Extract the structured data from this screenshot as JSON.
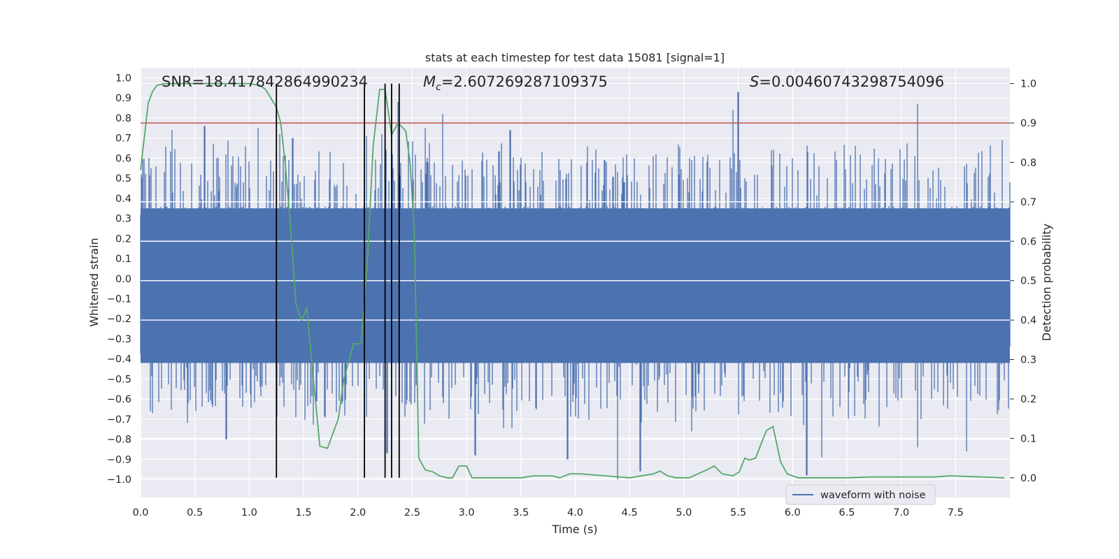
{
  "chart_data": {
    "type": "line",
    "title": "stats at each timestep for test data 15081 [signal=1]",
    "xlabel": "Time (s)",
    "ylabel_left": "Whitened strain",
    "ylabel_right": "Detection probability",
    "xlim": [
      0.0,
      8.0
    ],
    "ylim_left": [
      -1.09,
      1.05
    ],
    "ylim_right": [
      -0.05,
      1.04
    ],
    "x_ticks": [
      "0.0",
      "0.5",
      "1.0",
      "1.5",
      "2.0",
      "2.5",
      "3.0",
      "3.5",
      "4.0",
      "4.5",
      "5.0",
      "5.5",
      "6.0",
      "6.5",
      "7.0",
      "7.5"
    ],
    "y_ticks_left": [
      "1.0",
      "0.9",
      "0.8",
      "0.7",
      "0.6",
      "0.5",
      "0.4",
      "0.3",
      "0.2",
      "0.1",
      "0.0",
      "−0.1",
      "−0.2",
      "−0.3",
      "−0.4",
      "−0.5",
      "−0.6",
      "−0.7",
      "−0.8",
      "−0.9",
      "−1.0"
    ],
    "y_ticks_right": [
      "1.0",
      "0.9",
      "0.8",
      "0.7",
      "0.6",
      "0.5",
      "0.4",
      "0.3",
      "0.2",
      "0.1",
      "0.0"
    ],
    "grid": true,
    "annotations": {
      "snr": "SNR=18.417842864990234",
      "mc_symbol": "M",
      "mc_sub": "c",
      "mc_value": "=2.607269287109375",
      "s_symbol": "S",
      "s_value": "=0.004607432987540​96"
    },
    "threshold": {
      "value": 0.9,
      "color": "#c44e52"
    },
    "vertical_lines": [
      1.25,
      2.06,
      2.25,
      2.31,
      2.38
    ],
    "legend": {
      "label": "waveform with noise",
      "location": "lower-right"
    },
    "series": [
      {
        "name": "waveform with noise",
        "axis": "left",
        "color": "#4c72b0",
        "style": "dense noise trace",
        "x_range": [
          0.0,
          8.0
        ],
        "bulk_range": [
          -0.42,
          0.35
        ],
        "peaks": [
          [
            0.11,
            -0.67
          ],
          [
            0.29,
            0.74
          ],
          [
            0.59,
            0.76
          ],
          [
            0.79,
            -0.8
          ],
          [
            1.08,
            0.75
          ],
          [
            1.28,
            0.72
          ],
          [
            1.4,
            0.7
          ],
          [
            1.62,
            -0.61
          ],
          [
            2.08,
            0.71
          ],
          [
            2.22,
            0.72
          ],
          [
            2.27,
            -0.87
          ],
          [
            2.37,
            0.88
          ],
          [
            2.62,
            0.75
          ],
          [
            2.78,
            0.82
          ],
          [
            3.08,
            -0.88
          ],
          [
            3.4,
            0.74
          ],
          [
            3.93,
            -0.9
          ],
          [
            4.39,
            -1.0
          ],
          [
            4.6,
            -0.96
          ],
          [
            5.07,
            -0.76
          ],
          [
            5.45,
            0.84
          ],
          [
            5.5,
            0.93
          ],
          [
            6.13,
            -0.98
          ],
          [
            6.27,
            -0.89
          ],
          [
            7.15,
            0.87
          ],
          [
            7.15,
            -0.84
          ],
          [
            7.6,
            -0.86
          ],
          [
            7.93,
            0.69
          ]
        ]
      },
      {
        "name": "detection probability",
        "axis": "right",
        "color": "#55a868",
        "x": [
          0.0,
          0.07,
          0.11,
          0.15,
          0.2,
          0.3,
          0.5,
          0.8,
          1.0,
          1.1,
          1.15,
          1.25,
          1.29,
          1.33,
          1.38,
          1.43,
          1.48,
          1.53,
          1.58,
          1.65,
          1.72,
          1.82,
          1.87,
          1.96,
          2.03,
          2.09,
          2.14,
          2.2,
          2.25,
          2.31,
          2.37,
          2.44,
          2.48,
          2.52,
          2.56,
          2.62,
          2.69,
          2.75,
          2.82,
          2.87,
          2.93,
          3.0,
          3.05,
          3.13,
          3.5,
          3.62,
          3.78,
          3.86,
          3.95,
          4.05,
          4.5,
          4.72,
          4.78,
          4.85,
          4.93,
          5.05,
          5.13,
          5.21,
          5.28,
          5.35,
          5.45,
          5.51,
          5.56,
          5.6,
          5.66,
          5.73,
          5.76,
          5.82,
          5.89,
          5.95,
          6.05,
          6.5,
          6.7,
          7.3,
          7.45,
          7.95
        ],
        "y": [
          0.78,
          0.95,
          0.98,
          0.995,
          0.999,
          1.0,
          1.0,
          1.0,
          1.0,
          0.995,
          0.985,
          0.94,
          0.9,
          0.8,
          0.64,
          0.44,
          0.4,
          0.43,
          0.28,
          0.08,
          0.075,
          0.15,
          0.25,
          0.34,
          0.34,
          0.56,
          0.84,
          0.985,
          0.985,
          0.87,
          0.9,
          0.88,
          0.8,
          0.62,
          0.05,
          0.02,
          0.015,
          0.005,
          0.0,
          0.0,
          0.03,
          0.03,
          0.0,
          0.0,
          0.0,
          0.005,
          0.005,
          0.0,
          0.01,
          0.01,
          0.0,
          0.01,
          0.017,
          0.005,
          0.0,
          0.0,
          0.01,
          0.02,
          0.03,
          0.01,
          0.005,
          0.015,
          0.05,
          0.045,
          0.05,
          0.1,
          0.12,
          0.13,
          0.04,
          0.01,
          0.0,
          0.0,
          0.002,
          0.002,
          0.005,
          0.0
        ]
      }
    ]
  }
}
